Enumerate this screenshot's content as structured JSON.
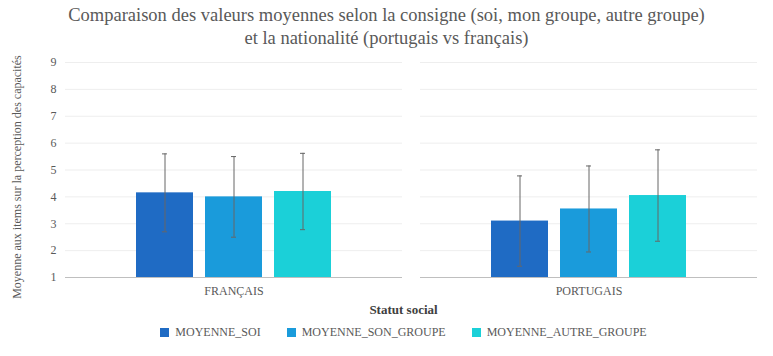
{
  "chart_data": {
    "type": "bar",
    "title": "Comparaison des valeurs moyennes selon la consigne (soi, mon groupe, autre groupe) et la nationalité (portugais vs français)",
    "x_label": "Statut social",
    "y_label": "Moyenne aux items sur la perception des capacités",
    "categories": [
      "FRANÇAIS",
      "PORTUGAIS"
    ],
    "series": [
      {
        "name": "MOYENNE_SOI",
        "color": "#1f6bc4",
        "values": [
          4.15,
          3.1
        ],
        "errors": [
          1.45,
          1.68
        ]
      },
      {
        "name": "MOYENNE_SON_GROUPE",
        "color": "#1a9bdb",
        "values": [
          4.0,
          3.55
        ],
        "errors": [
          1.5,
          1.6
        ]
      },
      {
        "name": "MOYENNE_AUTRE_GROUPE",
        "color": "#1bd0d8",
        "values": [
          4.2,
          4.05
        ],
        "errors": [
          1.42,
          1.7
        ]
      }
    ],
    "ylim": [
      1,
      9
    ],
    "yticks": [
      1,
      2,
      3,
      4,
      5,
      6,
      7,
      8,
      9
    ],
    "grid": true,
    "legend": "bottom"
  }
}
